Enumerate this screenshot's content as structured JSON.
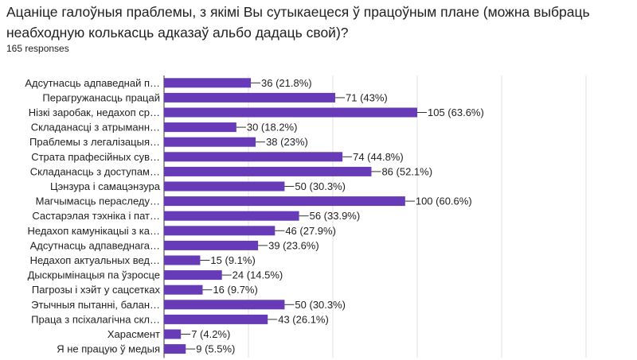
{
  "question": {
    "title": "Ацаніце галоўныя праблемы, з якімі Вы сутыкаецеся ў працоўным плане (можна выбраць неабходную колькасць адказаў альбо дадаць свой)?",
    "responses_label": "165 responses"
  },
  "chart_data": {
    "type": "bar",
    "orientation": "horizontal",
    "title": "Ацаніце галоўныя праблемы, з якімі Вы сутыкаецеся ў працоўным плане (можна выбраць неабходную колькасць адказаў альбо дадаць свой)?",
    "total_responses": 165,
    "bar_color": "#673ab7",
    "grid": true,
    "xlim": [
      0,
      175
    ],
    "categories": [
      "Адсутнасць адпаведнай п…",
      "Перагружанасць працай",
      "Нізкі заробак, недахоп ср…",
      "Складанасці з атрыманн…",
      "Праблемы з легалізацыя…",
      "Страта прафесійных сув…",
      "Складанасць з доступам…",
      "Цэнзура і самацэнзура",
      "Магчымасць пераследу…",
      "Састарэлая тэхніка і пат…",
      "Недахоп камунікацыі з ка…",
      "Адсутнасць адпаведнага…",
      "Недахоп актуальных вед…",
      "Дыскрымінацыя па ўзросце",
      "Пагрозы і хэйт у сацсетках",
      "Этычныя пытанні, балан…",
      "Праца з псіхалагічна скл…",
      "Харасмент",
      "Я не працую ў медыя"
    ],
    "values": [
      36,
      71,
      105,
      30,
      38,
      74,
      86,
      50,
      100,
      56,
      46,
      39,
      15,
      24,
      16,
      50,
      43,
      7,
      9
    ],
    "value_labels": [
      "36 (21.8%)",
      "71 (43%)",
      "105 (63.6%)",
      "30 (18.2%)",
      "38 (23%)",
      "74 (44.8%)",
      "86 (52.1%)",
      "50 (30.3%)",
      "100 (60.6%)",
      "56 (33.9%)",
      "46 (27.9%)",
      "39 (23.6%)",
      "15 (9.1%)",
      "24 (14.5%)",
      "16 (9.7%)",
      "50 (30.3%)",
      "43 (26.1%)",
      "7 (4.2%)",
      "9 (5.5%)"
    ]
  }
}
